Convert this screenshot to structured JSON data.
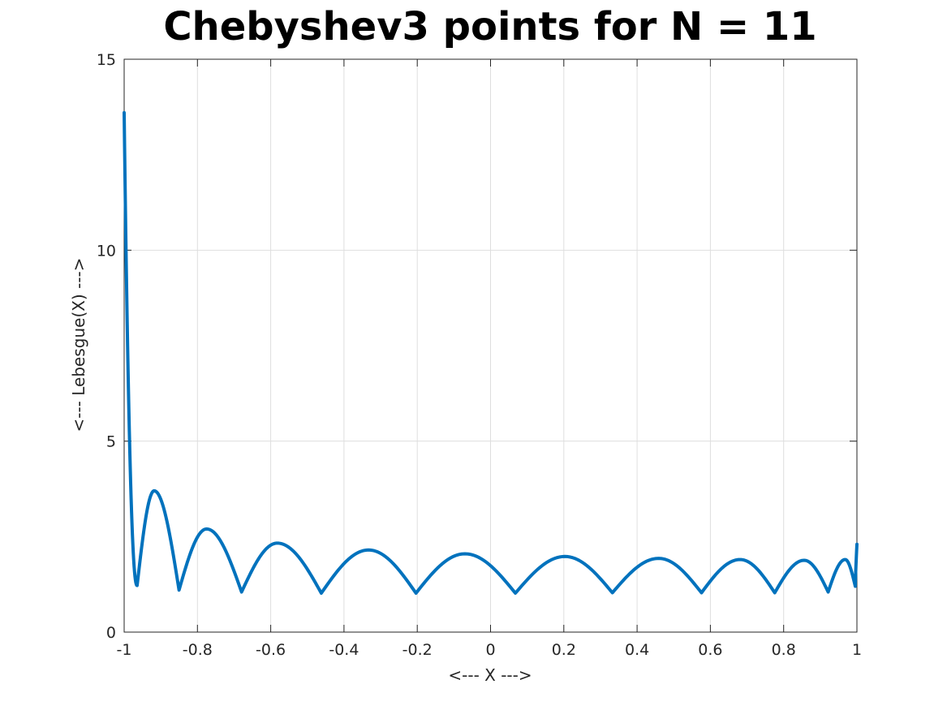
{
  "chart_data": {
    "type": "line",
    "title": "Chebyshev3 points for N = 11",
    "xlabel": "<--- X --->",
    "ylabel": "<--- Lebesgue(X) --->",
    "xlim": [
      -1,
      1
    ],
    "ylim": [
      0,
      15
    ],
    "x_ticks": [
      -1,
      -0.8,
      -0.6,
      -0.4,
      -0.2,
      0,
      0.2,
      0.4,
      0.6,
      0.8,
      1
    ],
    "x_tick_labels": [
      "-1",
      "-0.8",
      "-0.6",
      "-0.4",
      "-0.2",
      "0",
      "0.2",
      "0.4",
      "0.6",
      "0.8",
      "1"
    ],
    "y_ticks": [
      0,
      5,
      10,
      15
    ],
    "y_tick_labels": [
      "0",
      "5",
      "10",
      "15"
    ],
    "grid": true,
    "legend": "none",
    "series": [
      {
        "color": "#0072bd",
        "minima": [
          [
            -0.9646,
            1.22
          ],
          [
            -0.8502,
            1.1
          ],
          [
            -0.6795,
            1.05
          ],
          [
            -0.4619,
            1.02
          ],
          [
            -0.2035,
            1.02
          ],
          [
            0.0678,
            1.02
          ],
          [
            0.3326,
            1.03
          ],
          [
            0.5758,
            1.03
          ],
          [
            0.7757,
            1.03
          ],
          [
            0.9215,
            1.05
          ],
          [
            0.9955,
            1.2
          ]
        ],
        "peaks": [
          [
            -0.918,
            3.7
          ],
          [
            -0.775,
            2.7
          ],
          [
            -0.582,
            2.33
          ],
          [
            -0.333,
            2.15
          ],
          [
            -0.07,
            2.05
          ],
          [
            0.203,
            1.98
          ],
          [
            0.459,
            1.93
          ],
          [
            0.681,
            1.9
          ],
          [
            0.856,
            1.88
          ],
          [
            0.968,
            1.9
          ]
        ],
        "start": [
          -1.0,
          13.6
        ],
        "end": [
          1.0,
          2.3
        ]
      }
    ]
  }
}
